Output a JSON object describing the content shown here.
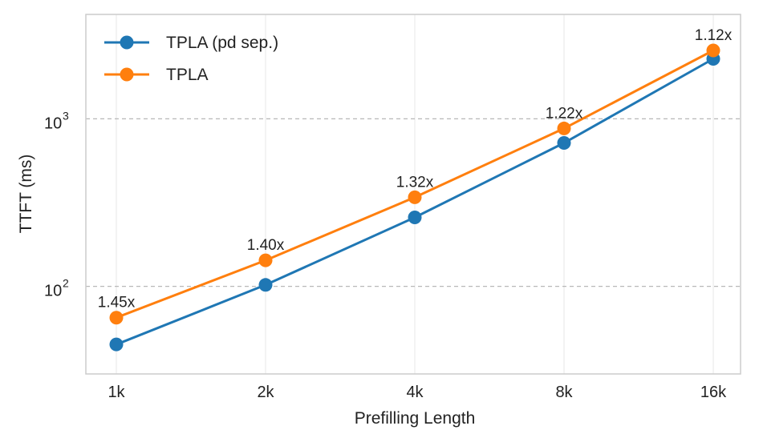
{
  "chart_data": {
    "type": "line",
    "title": "",
    "xlabel": "Prefilling Length",
    "ylabel": "TTFT (ms)",
    "yscale": "log",
    "ylim": [
      30,
      4200
    ],
    "categories": [
      "1k",
      "2k",
      "4k",
      "8k",
      "16k"
    ],
    "series": [
      {
        "name": "TPLA (pd sep.)",
        "color": "#1f77b4",
        "values": [
          45,
          102,
          258,
          718,
          2280
        ]
      },
      {
        "name": "TPLA",
        "color": "#ff7f0e",
        "values": [
          65,
          143,
          340,
          876,
          2560
        ]
      }
    ],
    "annotations": [
      "1.45x",
      "1.40x",
      "1.32x",
      "1.22x",
      "1.12x"
    ],
    "y_ticks": [
      {
        "value": 100,
        "base": "10",
        "exp": "2"
      },
      {
        "value": 1000,
        "base": "10",
        "exp": "3"
      }
    ],
    "grid": true,
    "legend": "top-left"
  }
}
